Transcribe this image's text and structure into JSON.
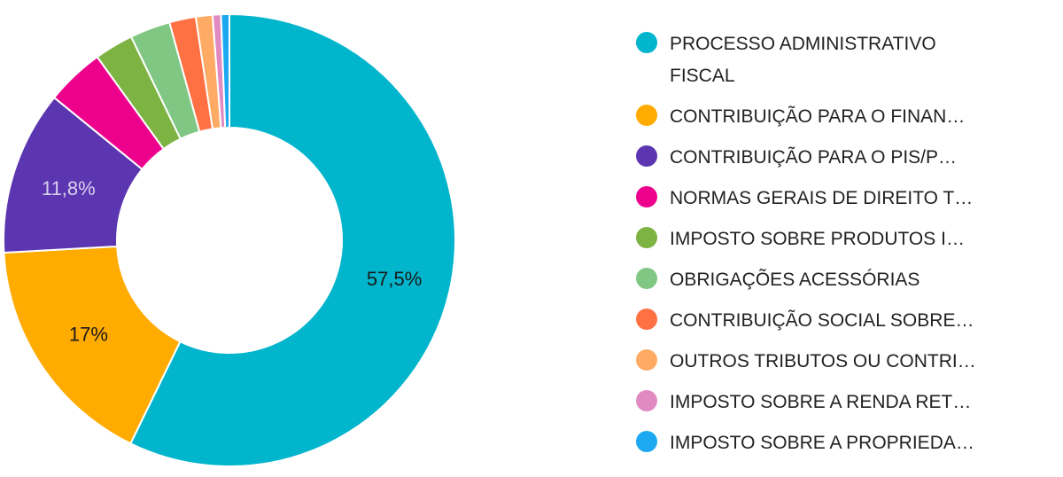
{
  "chart_data": {
    "type": "pie",
    "donut": true,
    "title": "",
    "categories": [
      "PROCESSO ADMINISTRATIVO FISCAL",
      "CONTRIBUIÇÃO PARA O FINAN…",
      "CONTRIBUIÇÃO PARA O PIS/P…",
      "NORMAS GERAIS DE DIREITO T…",
      "IMPOSTO SOBRE PRODUTOS I…",
      "OBRIGAÇÕES ACESSÓRIAS",
      "CONTRIBUIÇÃO SOCIAL SOBRE…",
      "OUTROS TRIBUTOS OU CONTRI…",
      "IMPOSTO SOBRE A RENDA RET…",
      "IMPOSTO SOBRE A PROPRIEDA…"
    ],
    "legend_lines": [
      [
        "PROCESSO ADMINISTRATIVO",
        "FISCAL"
      ],
      [
        "CONTRIBUIÇÃO PARA O FINAN…"
      ],
      [
        "CONTRIBUIÇÃO PARA O PIS/P…"
      ],
      [
        "NORMAS GERAIS DE DIREITO T…"
      ],
      [
        "IMPOSTO SOBRE PRODUTOS I…"
      ],
      [
        "OBRIGAÇÕES ACESSÓRIAS"
      ],
      [
        "CONTRIBUIÇÃO SOCIAL SOBRE…"
      ],
      [
        "OUTROS TRIBUTOS OU CONTRI…"
      ],
      [
        "IMPOSTO SOBRE A RENDA RET…"
      ],
      [
        "IMPOSTO SOBRE A PROPRIEDA…"
      ]
    ],
    "values": [
      57.5,
      17.0,
      11.8,
      4.2,
      2.8,
      2.9,
      1.9,
      1.2,
      0.6,
      0.6
    ],
    "data_labels": [
      "57,5%",
      "17%",
      "11,8%",
      "",
      "",
      "",
      "",
      "",
      "",
      ""
    ],
    "colors": [
      "#00b5cc",
      "#ffab00",
      "#5c36b0",
      "#ec008c",
      "#7cb342",
      "#81c784",
      "#ff7043",
      "#ffab66",
      "#e18ac2",
      "#1da9f2"
    ],
    "label_colors": [
      "#1a1a1a",
      "#1a1a1a",
      "#d9d2ee",
      "",
      "",
      "",
      "",
      "",
      "",
      ""
    ],
    "legend_position": "right"
  }
}
